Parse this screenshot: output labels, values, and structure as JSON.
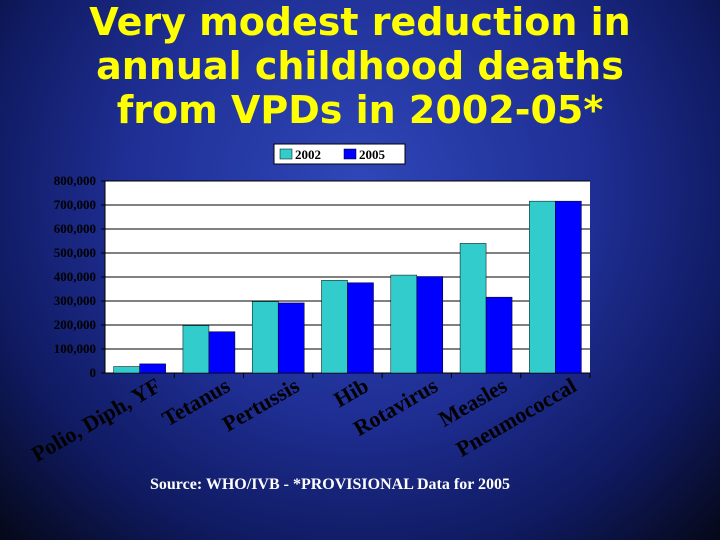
{
  "title_lines": [
    "Very modest reduction in",
    "annual childhood deaths",
    "from VPDs in 2002-05*"
  ],
  "source_note": "Source: WHO/IVB - *PROVISIONAL Data for 2005",
  "colors": {
    "background": "#1f2f95",
    "title": "#ffff00",
    "series_2002": "#33cccc",
    "series_2005": "#0000ff",
    "plot_area": "#ffffff",
    "category_labels": "#000000"
  },
  "chart_data": {
    "type": "bar",
    "categories": [
      "Polio, Diph, YF",
      "Tetanus",
      "Pertussis",
      "Hib",
      "Rotavirus",
      "Measles",
      "Pneumococcal"
    ],
    "series": [
      {
        "name": "2002",
        "values": [
          27000,
          198000,
          298000,
          386000,
          408000,
          540000,
          716000
        ]
      },
      {
        "name": "2005",
        "values": [
          38000,
          172000,
          292000,
          376000,
          402000,
          316000,
          716000
        ]
      }
    ],
    "ylim": [
      0,
      800000
    ],
    "yticks": [
      "0",
      "100,000",
      "200,000",
      "300,000",
      "400,000",
      "500,000",
      "600,000",
      "700,000",
      "800,000"
    ],
    "grid": true,
    "legend_position": "top",
    "xlabel": "",
    "ylabel": ""
  }
}
